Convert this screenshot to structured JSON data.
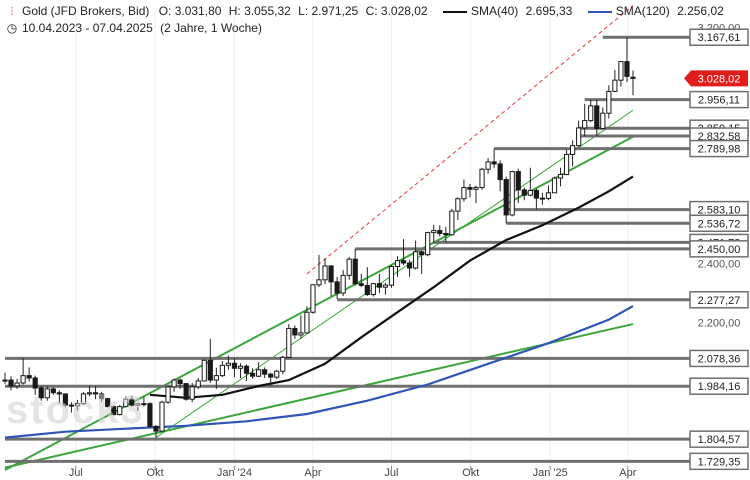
{
  "header": {
    "icon": "candlestick-icon",
    "title": "Gold (JFD Brokers, Bid)",
    "open": "O: 3.031,80",
    "high": "H: 3.055,32",
    "low": "L: 2.971,25",
    "close": "C: 3.028,02",
    "sma40_label": "SMA(40)",
    "sma40_value": "2.695,33",
    "sma120_label": "SMA(120)",
    "sma120_value": "2.256,02",
    "clock_icon": "clock-icon",
    "date_range": "10.04.2023 - 07.04.2025",
    "period": "(2 Jahre, 1 Woche)"
  },
  "watermark": "stock3",
  "colors": {
    "up": "#1a1a1a",
    "down": "#1a1a1a",
    "sma40": "#111111",
    "sma120": "#2f55b5",
    "trend_green": "#3aa53a",
    "trend_red_dashed": "#e23b3b",
    "level_gray": "#6f6f6f",
    "price_tag": "#e21b1b"
  },
  "chart_data": {
    "type": "candlestick",
    "title": "Gold (JFD Brokers, Bid)",
    "timeframe": "weekly",
    "x_range": [
      "2023-04-10",
      "2025-04-07"
    ],
    "ylim": [
      1700,
      3260
    ],
    "y_ticks": [
      {
        "value": 3200,
        "label": "3.200,00"
      },
      {
        "value": 2400,
        "label": "2.400,00"
      },
      {
        "value": 2200,
        "label": "2.200,00"
      }
    ],
    "x_ticks": [
      {
        "date": "2023-07-01",
        "label": "Jul"
      },
      {
        "date": "2023-10-01",
        "label": "Okt"
      },
      {
        "date": "2024-01-01",
        "label": "Jan '24"
      },
      {
        "date": "2024-04-01",
        "label": "Apr"
      },
      {
        "date": "2024-07-01",
        "label": "Jul"
      },
      {
        "date": "2024-10-01",
        "label": "Okt"
      },
      {
        "date": "2025-01-01",
        "label": "Jan '25"
      },
      {
        "date": "2025-04-01",
        "label": "Apr"
      }
    ],
    "horizontal_levels": [
      {
        "value": 3167.61,
        "label": "3.167,61",
        "start": "2025-03-03"
      },
      {
        "value": 2956.11,
        "label": "2.956,11",
        "start": "2025-02-10"
      },
      {
        "value": 2859.15,
        "label": "2.859,15",
        "start": "2025-02-03"
      },
      {
        "value": 2832.58,
        "label": "2.832,58",
        "start": "2025-02-03"
      },
      {
        "value": 2789.98,
        "label": "2.789,98",
        "start": "2024-10-28"
      },
      {
        "value": 2583.1,
        "label": "2.583,10",
        "start": "2024-11-11"
      },
      {
        "value": 2536.72,
        "label": "2.536,72",
        "start": "2024-11-11"
      },
      {
        "value": 2471.78,
        "label": "2.471,78",
        "start": "2024-08-19"
      },
      {
        "value": 2450.0,
        "label": "2.450,00",
        "start": "2024-05-20"
      },
      {
        "value": 2277.27,
        "label": "2.277,27",
        "start": "2024-04-29"
      },
      {
        "value": 2078.36,
        "label": "2.078,36",
        "start": "2023-04-10"
      },
      {
        "value": 1984.16,
        "label": "1.984,16",
        "start": "2023-04-10"
      },
      {
        "value": 1804.57,
        "label": "1.804,57",
        "start": "2023-04-10"
      },
      {
        "value": 1729.35,
        "label": "1.729,35",
        "start": "2023-04-10"
      }
    ],
    "last_price": {
      "value": 3028.02,
      "label": "3.028,02"
    },
    "trendlines": [
      {
        "style": "green",
        "from": {
          "date": "2023-04-10",
          "value": 1708
        },
        "to": {
          "date": "2025-04-07",
          "value": 2195
        }
      },
      {
        "style": "green",
        "from": {
          "date": "2023-04-10",
          "value": 1700
        },
        "to": {
          "date": "2025-04-07",
          "value": 2830
        }
      },
      {
        "style": "green-thin",
        "from": {
          "date": "2023-10-02",
          "value": 1810
        },
        "to": {
          "date": "2025-04-07",
          "value": 2920
        }
      },
      {
        "style": "red-dashed",
        "from": {
          "date": "2024-03-25",
          "value": 2365
        },
        "to": {
          "date": "2025-04-07",
          "value": 3275
        }
      }
    ],
    "candles": [
      {
        "t": "2023-04-10",
        "o": 2004,
        "h": 2030,
        "l": 1992,
        "c": 2005
      },
      {
        "t": "2023-04-17",
        "o": 2005,
        "h": 2018,
        "l": 1970,
        "c": 1985
      },
      {
        "t": "2023-04-24",
        "o": 1985,
        "h": 2009,
        "l": 1975,
        "c": 1995
      },
      {
        "t": "2023-05-01",
        "o": 1995,
        "h": 2080,
        "l": 1990,
        "c": 2020
      },
      {
        "t": "2023-05-08",
        "o": 2020,
        "h": 2048,
        "l": 2000,
        "c": 2012
      },
      {
        "t": "2023-05-15",
        "o": 2012,
        "h": 2020,
        "l": 1955,
        "c": 1978
      },
      {
        "t": "2023-05-22",
        "o": 1978,
        "h": 1985,
        "l": 1935,
        "c": 1945
      },
      {
        "t": "2023-05-29",
        "o": 1945,
        "h": 1985,
        "l": 1935,
        "c": 1975
      },
      {
        "t": "2023-06-05",
        "o": 1975,
        "h": 1980,
        "l": 1955,
        "c": 1962
      },
      {
        "t": "2023-06-12",
        "o": 1962,
        "h": 1970,
        "l": 1925,
        "c": 1958
      },
      {
        "t": "2023-06-19",
        "o": 1958,
        "h": 1960,
        "l": 1912,
        "c": 1920
      },
      {
        "t": "2023-06-26",
        "o": 1920,
        "h": 1930,
        "l": 1895,
        "c": 1918
      },
      {
        "t": "2023-07-03",
        "o": 1918,
        "h": 1938,
        "l": 1902,
        "c": 1925
      },
      {
        "t": "2023-07-10",
        "o": 1925,
        "h": 1965,
        "l": 1920,
        "c": 1958
      },
      {
        "t": "2023-07-17",
        "o": 1958,
        "h": 1985,
        "l": 1950,
        "c": 1962
      },
      {
        "t": "2023-07-24",
        "o": 1962,
        "h": 1985,
        "l": 1940,
        "c": 1958
      },
      {
        "t": "2023-07-31",
        "o": 1958,
        "h": 1965,
        "l": 1930,
        "c": 1942
      },
      {
        "t": "2023-08-07",
        "o": 1942,
        "h": 1945,
        "l": 1912,
        "c": 1915
      },
      {
        "t": "2023-08-14",
        "o": 1915,
        "h": 1920,
        "l": 1885,
        "c": 1888
      },
      {
        "t": "2023-08-21",
        "o": 1888,
        "h": 1920,
        "l": 1885,
        "c": 1915
      },
      {
        "t": "2023-08-28",
        "o": 1915,
        "h": 1950,
        "l": 1912,
        "c": 1940
      },
      {
        "t": "2023-09-04",
        "o": 1940,
        "h": 1952,
        "l": 1915,
        "c": 1920
      },
      {
        "t": "2023-09-11",
        "o": 1920,
        "h": 1928,
        "l": 1900,
        "c": 1925
      },
      {
        "t": "2023-09-18",
        "o": 1925,
        "h": 1948,
        "l": 1915,
        "c": 1925
      },
      {
        "t": "2023-09-25",
        "o": 1925,
        "h": 1930,
        "l": 1845,
        "c": 1848
      },
      {
        "t": "2023-10-02",
        "o": 1848,
        "h": 1852,
        "l": 1810,
        "c": 1832
      },
      {
        "t": "2023-10-09",
        "o": 1832,
        "h": 1935,
        "l": 1830,
        "c": 1930
      },
      {
        "t": "2023-10-16",
        "o": 1930,
        "h": 1985,
        "l": 1925,
        "c": 1982
      },
      {
        "t": "2023-10-23",
        "o": 1982,
        "h": 2010,
        "l": 1965,
        "c": 2005
      },
      {
        "t": "2023-10-30",
        "o": 2005,
        "h": 2010,
        "l": 1975,
        "c": 1993
      },
      {
        "t": "2023-11-06",
        "o": 1993,
        "h": 1995,
        "l": 1935,
        "c": 1940
      },
      {
        "t": "2023-11-13",
        "o": 1940,
        "h": 1995,
        "l": 1930,
        "c": 1982
      },
      {
        "t": "2023-11-20",
        "o": 1982,
        "h": 2012,
        "l": 1975,
        "c": 2002
      },
      {
        "t": "2023-11-27",
        "o": 2002,
        "h": 2075,
        "l": 2000,
        "c": 2072
      },
      {
        "t": "2023-12-04",
        "o": 2072,
        "h": 2145,
        "l": 1995,
        "c": 2005
      },
      {
        "t": "2023-12-11",
        "o": 2005,
        "h": 2047,
        "l": 1975,
        "c": 2020
      },
      {
        "t": "2023-12-18",
        "o": 2020,
        "h": 2070,
        "l": 2015,
        "c": 2055
      },
      {
        "t": "2023-12-25",
        "o": 2055,
        "h": 2088,
        "l": 2040,
        "c": 2062
      },
      {
        "t": "2024-01-01",
        "o": 2062,
        "h": 2078,
        "l": 2015,
        "c": 2045
      },
      {
        "t": "2024-01-08",
        "o": 2045,
        "h": 2062,
        "l": 2012,
        "c": 2052
      },
      {
        "t": "2024-01-15",
        "o": 2052,
        "h": 2058,
        "l": 2002,
        "c": 2028
      },
      {
        "t": "2024-01-22",
        "o": 2028,
        "h": 2045,
        "l": 2010,
        "c": 2018
      },
      {
        "t": "2024-01-29",
        "o": 2018,
        "h": 2065,
        "l": 2015,
        "c": 2040
      },
      {
        "t": "2024-02-05",
        "o": 2040,
        "h": 2048,
        "l": 2012,
        "c": 2025
      },
      {
        "t": "2024-02-12",
        "o": 2025,
        "h": 2030,
        "l": 1985,
        "c": 2015
      },
      {
        "t": "2024-02-19",
        "o": 2015,
        "h": 2040,
        "l": 2008,
        "c": 2035
      },
      {
        "t": "2024-02-26",
        "o": 2035,
        "h": 2088,
        "l": 2025,
        "c": 2082
      },
      {
        "t": "2024-03-04",
        "o": 2082,
        "h": 2195,
        "l": 2080,
        "c": 2180
      },
      {
        "t": "2024-03-11",
        "o": 2180,
        "h": 2190,
        "l": 2145,
        "c": 2158
      },
      {
        "t": "2024-03-18",
        "o": 2158,
        "h": 2225,
        "l": 2145,
        "c": 2165
      },
      {
        "t": "2024-03-25",
        "o": 2165,
        "h": 2255,
        "l": 2162,
        "c": 2235
      },
      {
        "t": "2024-04-01",
        "o": 2235,
        "h": 2330,
        "l": 2230,
        "c": 2328
      },
      {
        "t": "2024-04-08",
        "o": 2328,
        "h": 2430,
        "l": 2320,
        "c": 2345
      },
      {
        "t": "2024-04-15",
        "o": 2345,
        "h": 2418,
        "l": 2330,
        "c": 2392
      },
      {
        "t": "2024-04-22",
        "o": 2392,
        "h": 2395,
        "l": 2290,
        "c": 2338
      },
      {
        "t": "2024-04-29",
        "o": 2338,
        "h": 2355,
        "l": 2280,
        "c": 2300
      },
      {
        "t": "2024-05-06",
        "o": 2300,
        "h": 2378,
        "l": 2290,
        "c": 2360
      },
      {
        "t": "2024-05-13",
        "o": 2360,
        "h": 2422,
        "l": 2345,
        "c": 2415
      },
      {
        "t": "2024-05-20",
        "o": 2415,
        "h": 2450,
        "l": 2325,
        "c": 2332
      },
      {
        "t": "2024-05-27",
        "o": 2332,
        "h": 2365,
        "l": 2320,
        "c": 2326
      },
      {
        "t": "2024-06-03",
        "o": 2326,
        "h": 2388,
        "l": 2290,
        "c": 2295
      },
      {
        "t": "2024-06-10",
        "o": 2295,
        "h": 2335,
        "l": 2288,
        "c": 2332
      },
      {
        "t": "2024-06-17",
        "o": 2332,
        "h": 2365,
        "l": 2300,
        "c": 2320
      },
      {
        "t": "2024-06-24",
        "o": 2320,
        "h": 2335,
        "l": 2295,
        "c": 2327
      },
      {
        "t": "2024-07-01",
        "o": 2327,
        "h": 2395,
        "l": 2318,
        "c": 2390
      },
      {
        "t": "2024-07-08",
        "o": 2390,
        "h": 2425,
        "l": 2355,
        "c": 2410
      },
      {
        "t": "2024-07-15",
        "o": 2410,
        "h": 2483,
        "l": 2395,
        "c": 2402
      },
      {
        "t": "2024-07-22",
        "o": 2402,
        "h": 2412,
        "l": 2355,
        "c": 2385
      },
      {
        "t": "2024-07-29",
        "o": 2385,
        "h": 2478,
        "l": 2380,
        "c": 2440
      },
      {
        "t": "2024-08-05",
        "o": 2440,
        "h": 2445,
        "l": 2365,
        "c": 2430
      },
      {
        "t": "2024-08-12",
        "o": 2430,
        "h": 2508,
        "l": 2425,
        "c": 2505
      },
      {
        "t": "2024-08-19",
        "o": 2505,
        "h": 2532,
        "l": 2470,
        "c": 2512
      },
      {
        "t": "2024-08-26",
        "o": 2512,
        "h": 2530,
        "l": 2492,
        "c": 2502
      },
      {
        "t": "2024-09-02",
        "o": 2502,
        "h": 2525,
        "l": 2472,
        "c": 2498
      },
      {
        "t": "2024-09-09",
        "o": 2498,
        "h": 2585,
        "l": 2495,
        "c": 2578
      },
      {
        "t": "2024-09-16",
        "o": 2578,
        "h": 2625,
        "l": 2548,
        "c": 2620
      },
      {
        "t": "2024-09-23",
        "o": 2620,
        "h": 2685,
        "l": 2610,
        "c": 2658
      },
      {
        "t": "2024-09-30",
        "o": 2658,
        "h": 2670,
        "l": 2625,
        "c": 2652
      },
      {
        "t": "2024-10-07",
        "o": 2652,
        "h": 2665,
        "l": 2605,
        "c": 2658
      },
      {
        "t": "2024-10-14",
        "o": 2658,
        "h": 2725,
        "l": 2650,
        "c": 2720
      },
      {
        "t": "2024-10-21",
        "o": 2720,
        "h": 2758,
        "l": 2705,
        "c": 2745
      },
      {
        "t": "2024-10-28",
        "o": 2745,
        "h": 2790,
        "l": 2725,
        "c": 2738
      },
      {
        "t": "2024-11-04",
        "o": 2738,
        "h": 2750,
        "l": 2645,
        "c": 2685
      },
      {
        "t": "2024-11-11",
        "o": 2685,
        "h": 2695,
        "l": 2537,
        "c": 2565
      },
      {
        "t": "2024-11-18",
        "o": 2565,
        "h": 2715,
        "l": 2560,
        "c": 2712
      },
      {
        "t": "2024-11-25",
        "o": 2712,
        "h": 2722,
        "l": 2605,
        "c": 2650
      },
      {
        "t": "2024-12-02",
        "o": 2650,
        "h": 2658,
        "l": 2615,
        "c": 2632
      },
      {
        "t": "2024-12-09",
        "o": 2632,
        "h": 2725,
        "l": 2628,
        "c": 2648
      },
      {
        "t": "2024-12-16",
        "o": 2648,
        "h": 2655,
        "l": 2583,
        "c": 2622
      },
      {
        "t": "2024-12-23",
        "o": 2622,
        "h": 2640,
        "l": 2600,
        "c": 2621
      },
      {
        "t": "2024-12-30",
        "o": 2621,
        "h": 2665,
        "l": 2615,
        "c": 2640
      },
      {
        "t": "2025-01-06",
        "o": 2640,
        "h": 2695,
        "l": 2640,
        "c": 2690
      },
      {
        "t": "2025-01-13",
        "o": 2690,
        "h": 2725,
        "l": 2662,
        "c": 2702
      },
      {
        "t": "2025-01-20",
        "o": 2702,
        "h": 2785,
        "l": 2700,
        "c": 2770
      },
      {
        "t": "2025-01-27",
        "o": 2770,
        "h": 2818,
        "l": 2730,
        "c": 2800
      },
      {
        "t": "2025-02-03",
        "o": 2800,
        "h": 2885,
        "l": 2795,
        "c": 2860
      },
      {
        "t": "2025-02-10",
        "o": 2860,
        "h": 2942,
        "l": 2832,
        "c": 2885
      },
      {
        "t": "2025-02-17",
        "o": 2885,
        "h": 2956,
        "l": 2880,
        "c": 2935
      },
      {
        "t": "2025-02-24",
        "o": 2935,
        "h": 2955,
        "l": 2832,
        "c": 2858
      },
      {
        "t": "2025-03-03",
        "o": 2858,
        "h": 2930,
        "l": 2855,
        "c": 2910
      },
      {
        "t": "2025-03-10",
        "o": 2910,
        "h": 3005,
        "l": 2892,
        "c": 2984
      },
      {
        "t": "2025-03-17",
        "o": 2984,
        "h": 3057,
        "l": 2982,
        "c": 3022
      },
      {
        "t": "2025-03-24",
        "o": 3022,
        "h": 3086,
        "l": 3000,
        "c": 3085
      },
      {
        "t": "2025-03-31",
        "o": 3085,
        "h": 3167,
        "l": 3015,
        "c": 3035
      },
      {
        "t": "2025-04-07",
        "o": 3032,
        "h": 3055,
        "l": 2971,
        "c": 3028
      }
    ],
    "sma40": [
      {
        "t": "2023-09-25",
        "v": 1955
      },
      {
        "t": "2023-11-06",
        "v": 1945
      },
      {
        "t": "2023-12-18",
        "v": 1955
      },
      {
        "t": "2024-01-29",
        "v": 1985
      },
      {
        "t": "2024-03-04",
        "v": 2005
      },
      {
        "t": "2024-04-15",
        "v": 2060
      },
      {
        "t": "2024-05-27",
        "v": 2150
      },
      {
        "t": "2024-07-08",
        "v": 2235
      },
      {
        "t": "2024-08-19",
        "v": 2320
      },
      {
        "t": "2024-09-30",
        "v": 2410
      },
      {
        "t": "2024-11-11",
        "v": 2480
      },
      {
        "t": "2024-12-23",
        "v": 2530
      },
      {
        "t": "2025-02-03",
        "v": 2590
      },
      {
        "t": "2025-03-10",
        "v": 2645
      },
      {
        "t": "2025-04-07",
        "v": 2695
      }
    ],
    "sma120": [
      {
        "t": "2023-04-10",
        "v": 1810
      },
      {
        "t": "2023-06-19",
        "v": 1830
      },
      {
        "t": "2023-08-28",
        "v": 1840
      },
      {
        "t": "2023-11-06",
        "v": 1850
      },
      {
        "t": "2024-01-15",
        "v": 1865
      },
      {
        "t": "2024-03-25",
        "v": 1890
      },
      {
        "t": "2024-06-03",
        "v": 1935
      },
      {
        "t": "2024-08-12",
        "v": 1990
      },
      {
        "t": "2024-10-21",
        "v": 2060
      },
      {
        "t": "2024-12-30",
        "v": 2130
      },
      {
        "t": "2025-03-10",
        "v": 2210
      },
      {
        "t": "2025-04-07",
        "v": 2256
      }
    ]
  }
}
